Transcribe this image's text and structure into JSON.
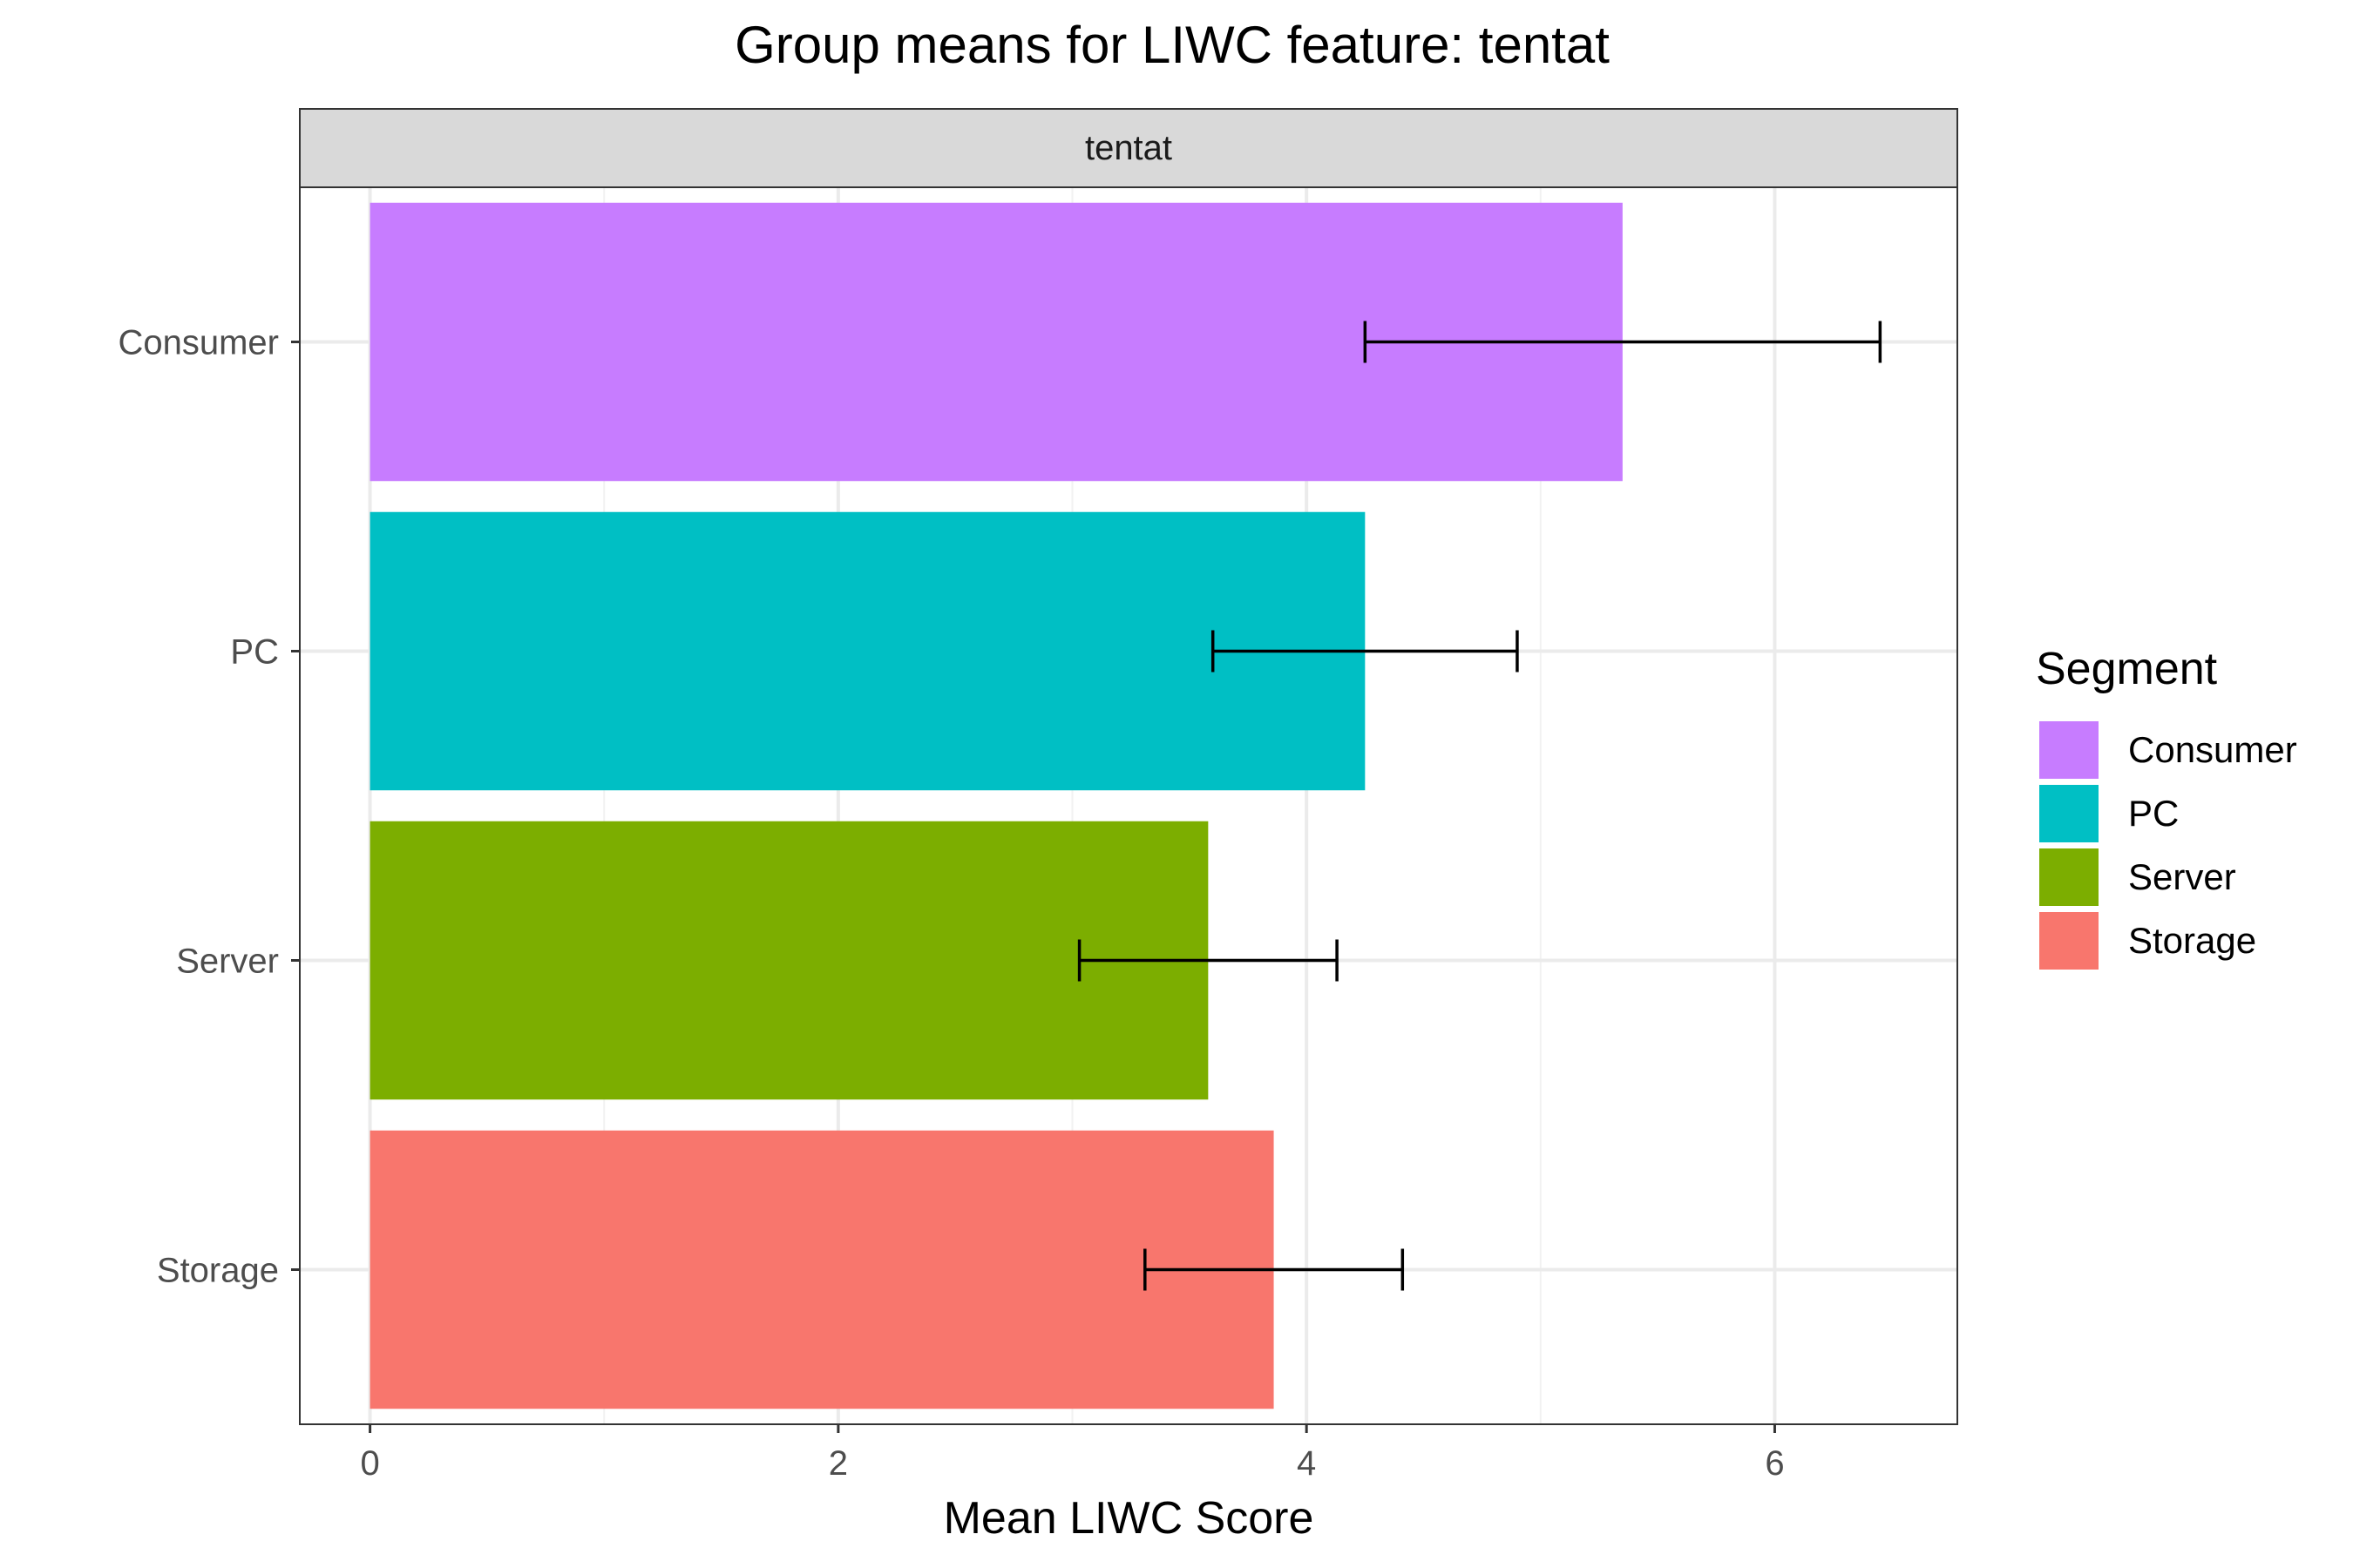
{
  "chart_data": {
    "type": "bar",
    "orientation": "horizontal",
    "title": "Group means for LIWC feature: tentat",
    "facet_label": "tentat",
    "xlabel": "Mean LIWC Score",
    "ylabel": "",
    "xlim": [
      -0.3,
      6.78
    ],
    "x_ticks": [
      0,
      2,
      4,
      6
    ],
    "grid": true,
    "categories": [
      "Consumer",
      "PC",
      "Server",
      "Storage"
    ],
    "values": [
      5.35,
      4.25,
      3.58,
      3.86
    ],
    "error_low": [
      4.25,
      3.6,
      3.03,
      3.31
    ],
    "error_high": [
      6.45,
      4.9,
      4.13,
      4.41
    ],
    "colors": [
      "#C77CFF",
      "#00BFC4",
      "#7CAE00",
      "#F8766D"
    ],
    "legend": {
      "title": "Segment",
      "position": "right",
      "entries": [
        "Consumer",
        "PC",
        "Server",
        "Storage"
      ]
    }
  }
}
